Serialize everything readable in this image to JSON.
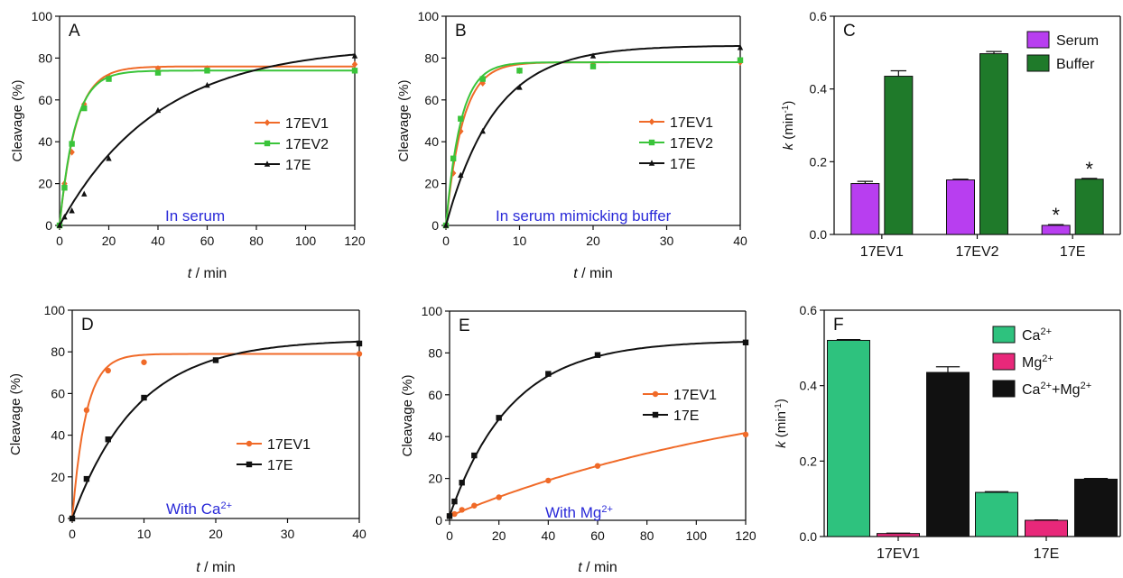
{
  "colors": {
    "orange": "#f06a28",
    "green": "#3ac43a",
    "black": "#111111",
    "purple": "#b83ef0",
    "darkgreen": "#1f7a2a",
    "teal": "#2ec27e",
    "pink": "#e8287a",
    "annot": "#2a2ad8"
  },
  "chart_data": [
    {
      "panel": "A",
      "type": "line",
      "annotation": "In serum",
      "xlabel_italic": "t",
      "xlabel_rest": " / min",
      "ylabel": "Cleavage (%)",
      "xlim": [
        0,
        120
      ],
      "ylim": [
        0,
        100
      ],
      "xticks": [
        0,
        20,
        40,
        60,
        80,
        100,
        120
      ],
      "yticks": [
        0,
        20,
        40,
        60,
        80,
        100
      ],
      "legend_position": "center-right",
      "series": [
        {
          "name": "17EV1",
          "color": "orange",
          "marker": "diamond",
          "fit": {
            "ymax": 76,
            "k": 0.15
          },
          "x": [
            0,
            2,
            5,
            10,
            20,
            40,
            60,
            120
          ],
          "y": [
            0,
            20,
            35,
            58,
            71,
            75,
            75,
            77
          ]
        },
        {
          "name": "17EV2",
          "color": "green",
          "marker": "square",
          "fit": {
            "ymax": 74,
            "k": 0.16
          },
          "x": [
            0,
            2,
            5,
            10,
            20,
            40,
            60,
            120
          ],
          "y": [
            0,
            18,
            39,
            56,
            70,
            73,
            74,
            74
          ]
        },
        {
          "name": "17E",
          "color": "black",
          "marker": "triangle",
          "fit": {
            "ymax": 86,
            "k": 0.025
          },
          "x": [
            0,
            2,
            5,
            10,
            20,
            40,
            60,
            120
          ],
          "y": [
            0,
            4,
            7,
            15,
            32,
            55,
            67,
            81
          ]
        }
      ]
    },
    {
      "panel": "B",
      "type": "line",
      "annotation": "In serum mimicking buffer",
      "xlabel_italic": "t",
      "xlabel_rest": " / min",
      "ylabel": "Cleavage (%)",
      "xlim": [
        0,
        40
      ],
      "ylim": [
        0,
        100
      ],
      "xticks": [
        0,
        10,
        20,
        30,
        40
      ],
      "yticks": [
        0,
        20,
        40,
        60,
        80,
        100
      ],
      "legend_position": "center-right",
      "series": [
        {
          "name": "17EV1",
          "color": "orange",
          "marker": "diamond",
          "fit": {
            "ymax": 78,
            "k": 0.44
          },
          "x": [
            0,
            1,
            2,
            5,
            10,
            20,
            40
          ],
          "y": [
            0,
            25,
            45,
            68,
            74,
            77,
            78
          ]
        },
        {
          "name": "17EV2",
          "color": "green",
          "marker": "square",
          "fit": {
            "ymax": 78,
            "k": 0.5
          },
          "x": [
            0,
            1,
            2,
            5,
            10,
            20,
            40
          ],
          "y": [
            0,
            32,
            51,
            70,
            74,
            76,
            79
          ]
        },
        {
          "name": "17E",
          "color": "black",
          "marker": "triangle",
          "fit": {
            "ymax": 86,
            "k": 0.15
          },
          "x": [
            0,
            2,
            5,
            10,
            20,
            40
          ],
          "y": [
            0,
            24,
            45,
            66,
            81,
            85
          ]
        }
      ]
    },
    {
      "panel": "C",
      "type": "bar",
      "ylabel_italic": "k",
      "ylabel_rest": " (min",
      "ylabel_sup": "-1",
      "ylabel_end": ")",
      "ylim": [
        0,
        0.6
      ],
      "yticks": [
        0.0,
        0.2,
        0.4,
        0.6
      ],
      "categories": [
        "17EV1",
        "17EV2",
        "17E"
      ],
      "legend_position": "top-right",
      "series": [
        {
          "name": "Serum",
          "color": "purple",
          "values": [
            0.14,
            0.15,
            0.025
          ],
          "errors": [
            0.006,
            0.002,
            0.002
          ]
        },
        {
          "name": "Buffer",
          "color": "darkgreen",
          "values": [
            0.435,
            0.497,
            0.152
          ],
          "errors": [
            0.015,
            0.006,
            0.002
          ]
        }
      ],
      "significance_marks": [
        "",
        "",
        "*"
      ]
    },
    {
      "panel": "D",
      "type": "line",
      "annotation": "With Ca",
      "annotation_sup": "2+",
      "xlabel_italic": "t",
      "xlabel_rest": " / min",
      "ylabel": "Cleavage (%)",
      "xlim": [
        0,
        40
      ],
      "ylim": [
        0,
        100
      ],
      "xticks": [
        0,
        10,
        20,
        30,
        40
      ],
      "yticks": [
        0,
        20,
        40,
        60,
        80,
        100
      ],
      "legend_position": "center-right",
      "series": [
        {
          "name": "17EV1",
          "color": "orange",
          "marker": "circle",
          "fit": {
            "ymax": 79,
            "k": 0.52
          },
          "x": [
            0,
            2,
            5,
            10,
            40
          ],
          "y": [
            0,
            52,
            71,
            75,
            79
          ]
        },
        {
          "name": "17E",
          "color": "black",
          "marker": "square",
          "fit": {
            "ymax": 86,
            "k": 0.11
          },
          "x": [
            0,
            2,
            5,
            10,
            20,
            40
          ],
          "y": [
            0,
            19,
            38,
            58,
            76,
            84
          ]
        }
      ]
    },
    {
      "panel": "E",
      "type": "line",
      "annotation": "With Mg",
      "annotation_sup": "2+",
      "xlabel_italic": "t",
      "xlabel_rest": " / min",
      "ylabel": "Cleavage (%)",
      "xlim": [
        0,
        120
      ],
      "ylim": [
        0,
        100
      ],
      "xticks": [
        0,
        20,
        40,
        60,
        80,
        100,
        120
      ],
      "yticks": [
        0,
        20,
        40,
        60,
        80,
        100
      ],
      "legend_position": "center-right",
      "series": [
        {
          "name": "17EV1",
          "color": "orange",
          "marker": "circle",
          "fit": {
            "ymax": 72,
            "k": 0.007,
            "y0": 2
          },
          "x": [
            0,
            2,
            5,
            10,
            20,
            40,
            60,
            120
          ],
          "y": [
            2,
            3,
            5,
            7,
            11,
            19,
            26,
            41
          ]
        },
        {
          "name": "17E",
          "color": "black",
          "marker": "square",
          "fit": {
            "ymax": 86,
            "k": 0.04,
            "y0": 2
          },
          "x": [
            0,
            2,
            5,
            10,
            20,
            40,
            60,
            120
          ],
          "y": [
            2,
            9,
            18,
            31,
            49,
            70,
            79,
            85
          ]
        }
      ]
    },
    {
      "panel": "F",
      "type": "bar",
      "ylabel_italic": "k",
      "ylabel_rest": " (min",
      "ylabel_sup": "-1",
      "ylabel_end": ")",
      "ylim": [
        0,
        0.6
      ],
      "yticks": [
        0.0,
        0.2,
        0.4,
        0.6
      ],
      "categories": [
        "17EV1",
        "17E"
      ],
      "legend_position": "top-right",
      "series": [
        {
          "name": "Ca",
          "name_sup": "2+",
          "color": "teal",
          "values": [
            0.52,
            0.117
          ],
          "errors": [
            0.002,
            0.002
          ]
        },
        {
          "name": "Mg",
          "name_sup": "2+",
          "color": "pink",
          "values": [
            0.008,
            0.043
          ],
          "errors": [
            0.001,
            0.001
          ]
        },
        {
          "name": "Ca",
          "name_sup": "2+",
          "name_tail": "+Mg",
          "name_tail_sup": "2+",
          "color": "black",
          "values": [
            0.435,
            0.152
          ],
          "errors": [
            0.015,
            0.002
          ]
        }
      ]
    }
  ]
}
